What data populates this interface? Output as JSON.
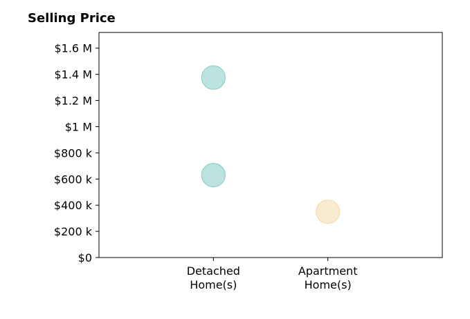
{
  "chart_data": {
    "type": "scatter",
    "title": "Selling Price",
    "xlabel": "",
    "ylabel": "",
    "categories": [
      "Detached\nHome(s)",
      "Apartment\nHome(s)"
    ],
    "x_range": [
      0,
      3
    ],
    "ylim": [
      0,
      1720000
    ],
    "yticks": [
      {
        "value": 0,
        "label": "$0"
      },
      {
        "value": 200000,
        "label": "$200 k"
      },
      {
        "value": 400000,
        "label": "$400 k"
      },
      {
        "value": 600000,
        "label": "$600 k"
      },
      {
        "value": 800000,
        "label": "$800 k"
      },
      {
        "value": 1000000,
        "label": "$1 M"
      },
      {
        "value": 1200000,
        "label": "$1.2 M"
      },
      {
        "value": 1400000,
        "label": "$1.4 M"
      },
      {
        "value": 1600000,
        "label": "$1.6 M"
      }
    ],
    "points": [
      {
        "category": "Detached\nHome(s)",
        "y": 1375000,
        "color": "#8ecfc9"
      },
      {
        "category": "Detached\nHome(s)",
        "y": 630000,
        "color": "#8ecfc9"
      },
      {
        "category": "Apartment\nHome(s)",
        "y": 350000,
        "color": "#f3dcae"
      }
    ],
    "grid": false,
    "legend": "none"
  }
}
